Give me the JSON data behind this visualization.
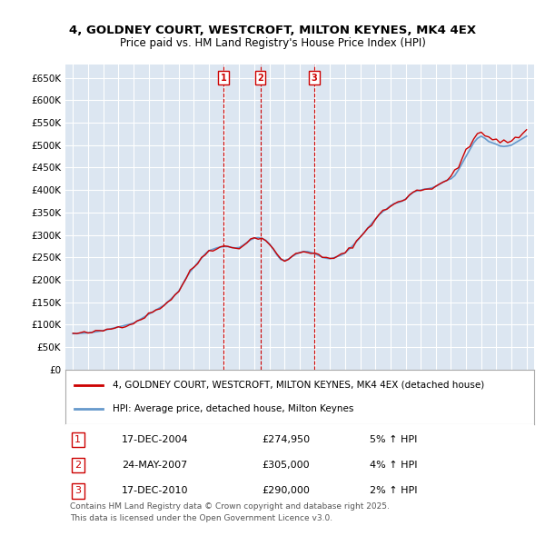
{
  "title": "4, GOLDNEY COURT, WESTCROFT, MILTON KEYNES, MK4 4EX",
  "subtitle": "Price paid vs. HM Land Registry's House Price Index (HPI)",
  "ylabel": "",
  "xlabel": "",
  "ylim": [
    0,
    680000
  ],
  "yticks": [
    0,
    50000,
    100000,
    150000,
    200000,
    250000,
    300000,
    350000,
    400000,
    450000,
    500000,
    550000,
    600000,
    650000
  ],
  "ytick_labels": [
    "£0",
    "£50K",
    "£100K",
    "£150K",
    "£200K",
    "£250K",
    "£300K",
    "£350K",
    "£400K",
    "£450K",
    "£500K",
    "£550K",
    "£600K",
    "£650K"
  ],
  "xlim_start": 1994.5,
  "xlim_end": 2025.5,
  "background_color": "#ffffff",
  "plot_bg_color": "#dce6f1",
  "grid_color": "#ffffff",
  "line_red_color": "#cc0000",
  "line_blue_color": "#6699cc",
  "sale_line_color": "#cc0000",
  "sale_marker_color": "#cc0000",
  "sales": [
    {
      "year": 2004.96,
      "price": 274950,
      "label": "1",
      "date": "17-DEC-2004",
      "amount": "£274,950",
      "hpi_pct": "5%",
      "arrow": "↑"
    },
    {
      "year": 2007.39,
      "price": 305000,
      "label": "2",
      "date": "24-MAY-2007",
      "amount": "£305,000",
      "hpi_pct": "4%",
      "arrow": "↑"
    },
    {
      "year": 2010.96,
      "price": 290000,
      "label": "3",
      "date": "17-DEC-2010",
      "amount": "£290,000",
      "hpi_pct": "2%",
      "arrow": "↑"
    }
  ],
  "legend_red_label": "4, GOLDNEY COURT, WESTCROFT, MILTON KEYNES, MK4 4EX (detached house)",
  "legend_blue_label": "HPI: Average price, detached house, Milton Keynes",
  "footer_line1": "Contains HM Land Registry data © Crown copyright and database right 2025.",
  "footer_line2": "This data is licensed under the Open Government Licence v3.0."
}
